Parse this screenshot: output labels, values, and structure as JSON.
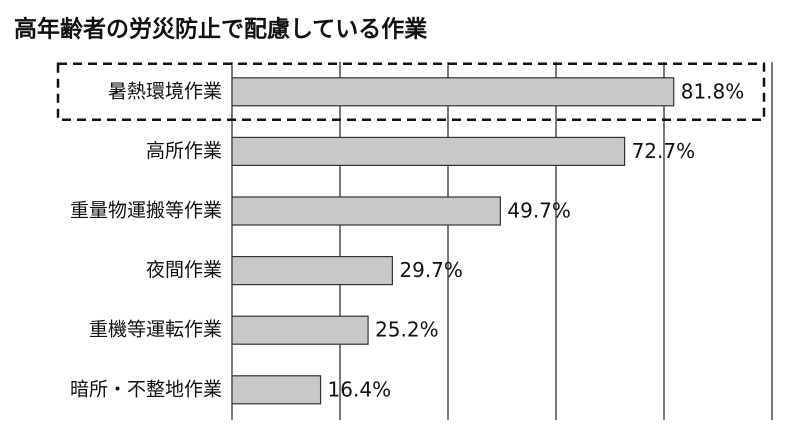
{
  "chart_data": {
    "type": "bar",
    "orientation": "horizontal",
    "title": "高年齢者の労災防止で配慮している作業",
    "categories": [
      "暑熱環境作業",
      "高所作業",
      "重量物運搬等作業",
      "夜間作業",
      "重機等運転作業",
      "暗所・不整地作業"
    ],
    "values": [
      81.8,
      72.7,
      49.7,
      29.7,
      25.2,
      16.4
    ],
    "value_labels": [
      "81.8%",
      "72.7%",
      "49.7%",
      "29.7%",
      "25.2%",
      "16.4%"
    ],
    "color": "#c8c8c8",
    "xlim": [
      0,
      100
    ],
    "xticks": [
      0,
      20,
      40,
      60,
      80,
      100
    ],
    "grid": true,
    "highlight": 0
  }
}
